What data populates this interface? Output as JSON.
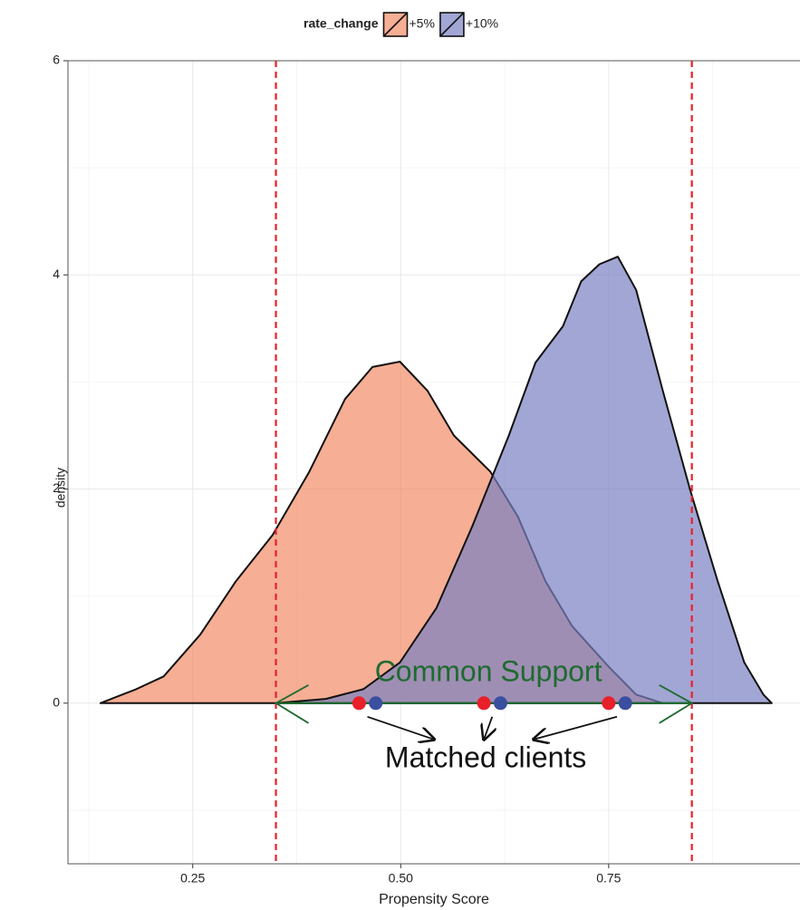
{
  "chart_data": {
    "type": "density",
    "xlabel": "Propensity Score",
    "ylabel": "density",
    "legend_title": "rate_change",
    "legend_position": "top",
    "grid": true,
    "xlim": [
      0.1,
      0.98
    ],
    "ylim": [
      -1.5,
      6
    ],
    "xticks": [
      0.25,
      {
        "value": 0.5,
        "label": "0.50"
      },
      0.75
    ],
    "yticks": [
      0,
      2,
      4,
      6
    ],
    "series": [
      {
        "name": "+5%",
        "color": "#f28c66",
        "x": [
          0.139,
          0.182,
          0.215,
          0.259,
          0.302,
          0.346,
          0.39,
          0.433,
          0.466,
          0.499,
          0.532,
          0.564,
          0.608,
          0.641,
          0.674,
          0.706,
          0.75,
          0.783,
          0.815
        ],
        "values": [
          0,
          0.13,
          0.25,
          0.64,
          1.14,
          1.57,
          2.16,
          2.84,
          3.14,
          3.19,
          2.92,
          2.5,
          2.16,
          1.74,
          1.14,
          0.72,
          0.34,
          0.08,
          0
        ]
      },
      {
        "name": "+10%",
        "color": "#7b80c2",
        "x": [
          0.35,
          0.41,
          0.455,
          0.499,
          0.543,
          0.586,
          0.63,
          0.662,
          0.695,
          0.717,
          0.739,
          0.761,
          0.783,
          0.815,
          0.848,
          0.881,
          0.913,
          0.936,
          0.946
        ],
        "values": [
          0,
          0.04,
          0.13,
          0.38,
          0.89,
          1.65,
          2.5,
          3.18,
          3.52,
          3.94,
          4.1,
          4.17,
          3.86,
          2.92,
          1.99,
          1.14,
          0.38,
          0.08,
          0
        ]
      }
    ],
    "vlines": [
      {
        "value": 0.35,
        "color": "#e8202a"
      },
      {
        "value": 0.85,
        "color": "#e8202a"
      }
    ],
    "support": {
      "label": "Common Support",
      "from": 0.35,
      "to": 0.85,
      "y": 0,
      "color": "#1e6b30"
    },
    "matched": {
      "label": "Matched clients",
      "points": [
        {
          "x": 0.45,
          "color": "#e8202a"
        },
        {
          "x": 0.47,
          "color": "#3b4fa0"
        },
        {
          "x": 0.6,
          "color": "#e8202a"
        },
        {
          "x": 0.62,
          "color": "#3b4fa0"
        },
        {
          "x": 0.75,
          "color": "#e8202a"
        },
        {
          "x": 0.77,
          "color": "#3b4fa0"
        }
      ]
    }
  }
}
